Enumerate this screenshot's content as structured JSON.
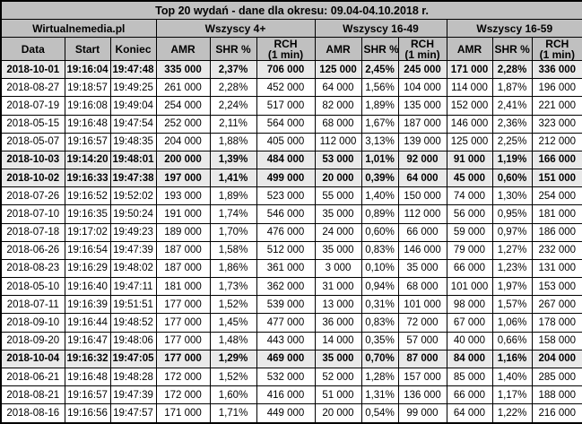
{
  "colors": {
    "header_background": "#c0c0c0",
    "highlight_row_background": "#e9e9e9",
    "border": "#000000",
    "row_background": "#ffffff",
    "text": "#000000"
  },
  "chart_data": {
    "type": "table",
    "title": "Top 20 wydań - dane dla okresu: 09.04-04.10.2018 r.",
    "column_groups": [
      {
        "label": "Wirtualnemedia.pl",
        "span": 3
      },
      {
        "label": "Wszyscy 4+",
        "span": 3
      },
      {
        "label": "Wszyscy 16-49",
        "span": 3
      },
      {
        "label": "Wszyscy 16-59",
        "span": 3
      }
    ],
    "columns": [
      "Data",
      "Start",
      "Koniec",
      "AMR",
      "SHR %",
      "RCH\n(1 min)",
      "AMR",
      "SHR %",
      "RCH\n(1 min)",
      "AMR",
      "SHR %",
      "RCH\n(1 min)"
    ],
    "rows": [
      {
        "highlight": true,
        "cells": [
          "2018-10-01",
          "19:16:04",
          "19:47:48",
          "335 000",
          "2,37%",
          "706 000",
          "125 000",
          "2,45%",
          "245 000",
          "171 000",
          "2,28%",
          "336 000"
        ]
      },
      {
        "highlight": false,
        "cells": [
          "2018-08-27",
          "19:18:57",
          "19:49:25",
          "261 000",
          "2,28%",
          "452 000",
          "64 000",
          "1,56%",
          "104 000",
          "114 000",
          "1,87%",
          "196 000"
        ]
      },
      {
        "highlight": false,
        "cells": [
          "2018-07-19",
          "19:16:08",
          "19:49:04",
          "254 000",
          "2,24%",
          "517 000",
          "82 000",
          "1,89%",
          "135 000",
          "152 000",
          "2,41%",
          "221 000"
        ]
      },
      {
        "highlight": false,
        "cells": [
          "2018-05-15",
          "19:16:48",
          "19:47:54",
          "252 000",
          "2,11%",
          "564 000",
          "68 000",
          "1,67%",
          "187 000",
          "146 000",
          "2,36%",
          "323 000"
        ]
      },
      {
        "highlight": false,
        "cells": [
          "2018-05-07",
          "19:16:57",
          "19:48:35",
          "204 000",
          "1,88%",
          "405 000",
          "112 000",
          "3,13%",
          "139 000",
          "125 000",
          "2,25%",
          "212 000"
        ]
      },
      {
        "highlight": true,
        "cells": [
          "2018-10-03",
          "19:14:20",
          "19:48:01",
          "200 000",
          "1,39%",
          "484 000",
          "53 000",
          "1,01%",
          "92 000",
          "91 000",
          "1,19%",
          "166 000"
        ]
      },
      {
        "highlight": true,
        "cells": [
          "2018-10-02",
          "19:16:33",
          "19:47:38",
          "197 000",
          "1,41%",
          "499 000",
          "20 000",
          "0,39%",
          "64 000",
          "45 000",
          "0,60%",
          "151 000"
        ]
      },
      {
        "highlight": false,
        "cells": [
          "2018-07-26",
          "19:16:52",
          "19:52:02",
          "193 000",
          "1,89%",
          "523 000",
          "55 000",
          "1,40%",
          "150 000",
          "74 000",
          "1,30%",
          "254 000"
        ]
      },
      {
        "highlight": false,
        "cells": [
          "2018-07-10",
          "19:16:35",
          "19:50:24",
          "191 000",
          "1,74%",
          "546 000",
          "35 000",
          "0,89%",
          "112 000",
          "56 000",
          "0,95%",
          "181 000"
        ]
      },
      {
        "highlight": false,
        "cells": [
          "2018-07-18",
          "19:17:02",
          "19:49:23",
          "189 000",
          "1,70%",
          "476 000",
          "24 000",
          "0,60%",
          "66 000",
          "59 000",
          "0,97%",
          "186 000"
        ]
      },
      {
        "highlight": false,
        "cells": [
          "2018-06-26",
          "19:16:54",
          "19:47:39",
          "187 000",
          "1,58%",
          "512 000",
          "35 000",
          "0,83%",
          "146 000",
          "79 000",
          "1,27%",
          "232 000"
        ]
      },
      {
        "highlight": false,
        "cells": [
          "2018-08-23",
          "19:16:29",
          "19:48:02",
          "187 000",
          "1,86%",
          "361 000",
          "3 000",
          "0,10%",
          "35 000",
          "66 000",
          "1,23%",
          "131 000"
        ]
      },
      {
        "highlight": false,
        "cells": [
          "2018-05-10",
          "19:16:40",
          "19:47:11",
          "181 000",
          "1,73%",
          "362 000",
          "31 000",
          "0,94%",
          "68 000",
          "101 000",
          "1,97%",
          "153 000"
        ]
      },
      {
        "highlight": false,
        "cells": [
          "2018-07-11",
          "19:16:39",
          "19:51:51",
          "177 000",
          "1,52%",
          "539 000",
          "13 000",
          "0,31%",
          "101 000",
          "98 000",
          "1,57%",
          "267 000"
        ]
      },
      {
        "highlight": false,
        "cells": [
          "2018-09-10",
          "19:16:44",
          "19:48:52",
          "177 000",
          "1,45%",
          "477 000",
          "36 000",
          "0,83%",
          "72 000",
          "67 000",
          "1,06%",
          "178 000"
        ]
      },
      {
        "highlight": false,
        "cells": [
          "2018-09-20",
          "19:16:47",
          "19:48:06",
          "177 000",
          "1,48%",
          "443 000",
          "14 000",
          "0,35%",
          "57 000",
          "40 000",
          "0,66%",
          "158 000"
        ]
      },
      {
        "highlight": true,
        "cells": [
          "2018-10-04",
          "19:16:32",
          "19:47:05",
          "177 000",
          "1,29%",
          "469 000",
          "35 000",
          "0,70%",
          "87 000",
          "84 000",
          "1,16%",
          "204 000"
        ]
      },
      {
        "highlight": false,
        "cells": [
          "2018-06-21",
          "19:16:48",
          "19:48:28",
          "172 000",
          "1,52%",
          "532 000",
          "52 000",
          "1,28%",
          "157 000",
          "85 000",
          "1,40%",
          "285 000"
        ]
      },
      {
        "highlight": false,
        "cells": [
          "2018-08-21",
          "19:16:57",
          "19:47:39",
          "172 000",
          "1,60%",
          "416 000",
          "51 000",
          "1,31%",
          "136 000",
          "66 000",
          "1,17%",
          "188 000"
        ]
      },
      {
        "highlight": false,
        "cells": [
          "2018-08-16",
          "19:16:56",
          "19:47:57",
          "171 000",
          "1,71%",
          "449 000",
          "20 000",
          "0,54%",
          "99 000",
          "64 000",
          "1,22%",
          "216 000"
        ]
      }
    ]
  }
}
